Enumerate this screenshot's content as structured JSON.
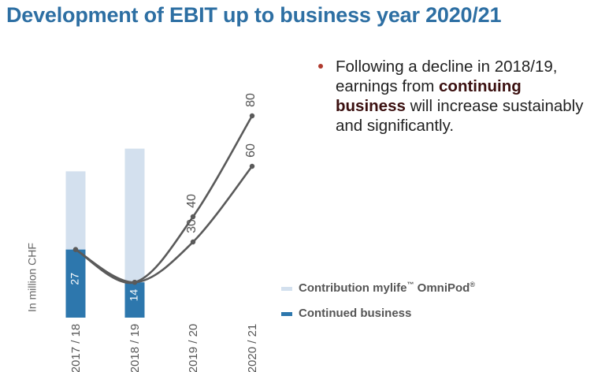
{
  "page": {
    "title": "Development of EBIT up to business year 2020/21"
  },
  "bullet": {
    "prefix": "Following a decline in 2018/19, earnings from ",
    "bold": "continuing business",
    "suffix": " will increase sustainably and significantly."
  },
  "legend": {
    "omnipod": "Contribution mylife",
    "omnipod_tm": "™",
    "omnipod_rest": " OmniPod",
    "omnipod_reg": "®",
    "continued": "Continued business"
  },
  "colors": {
    "title": "#2d6fa3",
    "bar_continued": "#2d77ad",
    "bar_omnipod": "#d3e0ee",
    "line": "#5a5a5a",
    "bullet": "#b03a2e"
  },
  "chart_data": {
    "type": "bar",
    "ylabel": "In million CHF",
    "categories": [
      "2017 / 18",
      "2018 / 19",
      "2019 / 20",
      "2020 / 21"
    ],
    "series": [
      {
        "name": "Continued business",
        "values": [
          27,
          14,
          null,
          null
        ],
        "labels": [
          "27",
          "14",
          "",
          ""
        ]
      },
      {
        "name": "Contribution mylife™ OmniPod®",
        "values": [
          31,
          53,
          null,
          null
        ]
      }
    ],
    "forecast_lines": [
      {
        "values": [
          27,
          14,
          40,
          80
        ],
        "labels": [
          "",
          "",
          "40",
          "80"
        ]
      },
      {
        "values": [
          27,
          14,
          30,
          60
        ],
        "labels": [
          "",
          "",
          "30",
          "60"
        ]
      }
    ],
    "ylim": [
      0,
      90
    ],
    "grid": false
  }
}
